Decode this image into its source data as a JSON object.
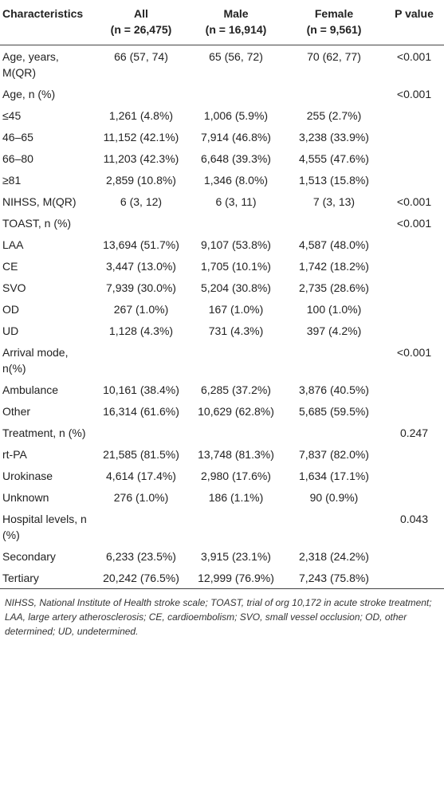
{
  "table": {
    "columns": [
      "Characteristics",
      "All",
      "Male",
      "Female",
      "P value"
    ],
    "column_counts": [
      null,
      "(n = 26,475)",
      "(n = 16,914)",
      "(n = 9,561)",
      null
    ],
    "rows": [
      [
        "Age, years, M(QR)",
        "66 (57, 74)",
        "65 (56, 72)",
        "70 (62, 77)",
        "<0.001"
      ],
      [
        "Age, n (%)",
        null,
        null,
        null,
        "<0.001"
      ],
      [
        "≤45",
        "1,261 (4.8%)",
        "1,006 (5.9%)",
        "255 (2.7%)",
        null
      ],
      [
        "46–65",
        "11,152 (42.1%)",
        "7,914 (46.8%)",
        "3,238 (33.9%)",
        null
      ],
      [
        "66–80",
        "11,203 (42.3%)",
        "6,648 (39.3%)",
        "4,555 (47.6%)",
        null
      ],
      [
        "≥81",
        "2,859 (10.8%)",
        "1,346 (8.0%)",
        "1,513 (15.8%)",
        null
      ],
      [
        "NIHSS, M(QR)",
        "6 (3, 12)",
        "6 (3, 11)",
        "7 (3, 13)",
        "<0.001"
      ],
      [
        "TOAST, n (%)",
        null,
        null,
        null,
        "<0.001"
      ],
      [
        "LAA",
        "13,694 (51.7%)",
        "9,107 (53.8%)",
        "4,587 (48.0%)",
        null
      ],
      [
        "CE",
        "3,447 (13.0%)",
        "1,705 (10.1%)",
        "1,742 (18.2%)",
        null
      ],
      [
        "SVO",
        "7,939 (30.0%)",
        "5,204 (30.8%)",
        "2,735 (28.6%)",
        null
      ],
      [
        "OD",
        "267 (1.0%)",
        "167 (1.0%)",
        "100 (1.0%)",
        null
      ],
      [
        "UD",
        "1,128 (4.3%)",
        "731 (4.3%)",
        "397 (4.2%)",
        null
      ],
      [
        "Arrival mode, n(%)",
        null,
        null,
        null,
        "<0.001"
      ],
      [
        "Ambulance",
        "10,161 (38.4%)",
        "6,285 (37.2%)",
        "3,876 (40.5%)",
        null
      ],
      [
        "Other",
        "16,314 (61.6%)",
        "10,629 (62.8%)",
        "5,685 (59.5%)",
        null
      ],
      [
        "Treatment, n (%)",
        null,
        null,
        null,
        "0.247"
      ],
      [
        "rt-PA",
        "21,585 (81.5%)",
        "13,748 (81.3%)",
        "7,837 (82.0%)",
        null
      ],
      [
        "Urokinase",
        "4,614 (17.4%)",
        "2,980 (17.6%)",
        "1,634 (17.1%)",
        null
      ],
      [
        "Unknown",
        "276 (1.0%)",
        "186 (1.1%)",
        "90 (0.9%)",
        null
      ],
      [
        "Hospital levels, n (%)",
        null,
        null,
        null,
        "0.043"
      ],
      [
        "Secondary",
        "6,233 (23.5%)",
        "3,915 (23.1%)",
        "2,318 (24.2%)",
        null
      ],
      [
        "Tertiary",
        "20,242 (76.5%)",
        "12,999 (76.9%)",
        "7,243 (75.8%)",
        null
      ]
    ]
  },
  "footnote": "NIHSS, National Institute of Health stroke scale; TOAST, trial of org 10,172 in acute stroke treatment; LAA, large artery atherosclerosis; CE, cardioembolism; SVO, small vessel occlusion; OD, other determined; UD, undetermined."
}
